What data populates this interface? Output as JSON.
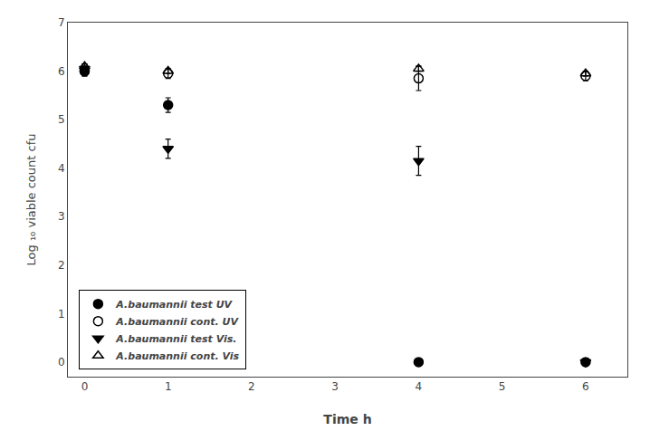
{
  "chart_data": {
    "type": "scatter",
    "x": [
      0,
      1,
      4,
      6
    ],
    "xlabel": "Time h",
    "ylabel": "Log ₁₀ viable count cfu",
    "series": [
      {
        "name": "A.baumannii test UV",
        "color": "black",
        "marker": "circle",
        "values": [
          6.0,
          5.3,
          0.0,
          0.0
        ],
        "yerr": [
          0.1,
          0.15,
          0.0,
          0.0
        ]
      },
      {
        "name": "A.baumannii cont. UV",
        "color": "black",
        "marker": "circle-open",
        "values": [
          6.0,
          5.95,
          5.85,
          5.9
        ],
        "yerr": [
          0.1,
          0.1,
          0.25,
          0.1
        ]
      },
      {
        "name": "A.baumannii test Vis.",
        "color": "black",
        "marker": "triangle-down",
        "values": [
          6.05,
          4.4,
          4.15,
          0.0
        ],
        "yerr": [
          0.1,
          0.2,
          0.3,
          0.0
        ]
      },
      {
        "name": "A.baumannii cont. Vis",
        "color": "black",
        "marker": "triangle-up-open",
        "values": [
          6.1,
          6.0,
          6.05,
          5.95
        ],
        "yerr": [
          0.05,
          0.05,
          0.05,
          0.05
        ]
      }
    ],
    "xlim": [
      -0.2,
      6.5
    ],
    "ylim": [
      -0.3,
      7.0
    ],
    "xticks": [
      0,
      1,
      2,
      3,
      4,
      5,
      6
    ],
    "yticks": [
      0,
      1,
      2,
      3,
      4,
      5,
      6,
      7
    ],
    "grid": false,
    "legend": "lower left"
  }
}
